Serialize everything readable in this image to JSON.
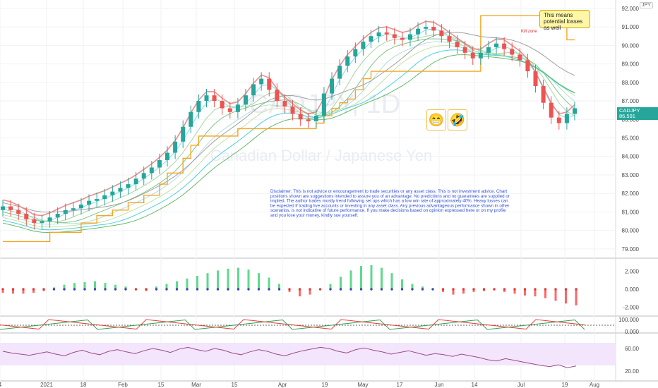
{
  "chart_data": {
    "type": "line",
    "symbol": "CADJPY, 1D",
    "subtitle": "Canadian Dollar / Japanese Yen",
    "currency_tag": "JPY",
    "last_price_label": "CADJPY",
    "last_price": "86.591",
    "countdown": "23:57:43",
    "price_ticks": [
      "92.000",
      "91.000",
      "90.000",
      "89.000",
      "88.000",
      "87.000",
      "86.000",
      "85.000",
      "84.000",
      "83.000",
      "82.000",
      "81.000",
      "80.000",
      "79.000"
    ],
    "ylim": [
      78.5,
      92.3
    ],
    "x_ticks": [
      "4",
      "2021",
      "18",
      "Feb",
      "15",
      "Mar",
      "15",
      "Apr",
      "19",
      "May",
      "17",
      "Jun",
      "14",
      "Jul",
      "19",
      "Aug"
    ],
    "price_close": [
      81.3,
      81.1,
      80.9,
      80.6,
      80.4,
      80.5,
      80.7,
      80.9,
      81.1,
      81.2,
      81.4,
      81.6,
      81.7,
      81.9,
      82.1,
      82.3,
      82.5,
      82.8,
      83.1,
      83.4,
      83.8,
      84.2,
      84.8,
      85.6,
      86.4,
      87.0,
      87.3,
      87.0,
      86.6,
      86.4,
      86.8,
      87.3,
      87.9,
      88.2,
      87.6,
      87.0,
      86.7,
      86.3,
      86.0,
      85.9,
      86.2,
      87.4,
      88.2,
      88.9,
      89.4,
      89.8,
      90.2,
      90.5,
      90.7,
      90.6,
      90.4,
      90.3,
      90.6,
      90.9,
      91.0,
      90.8,
      90.5,
      90.2,
      89.9,
      89.6,
      89.3,
      89.6,
      89.9,
      90.1,
      89.8,
      89.5,
      89.2,
      88.6,
      87.8,
      86.9,
      86.1,
      85.8,
      86.3,
      86.6
    ],
    "stop_line": [
      79.4,
      79.4,
      79.4,
      79.4,
      79.4,
      79.4,
      79.9,
      79.9,
      79.9,
      79.9,
      80.4,
      80.4,
      80.8,
      80.8,
      81.1,
      81.1,
      81.5,
      81.5,
      81.9,
      81.9,
      82.5,
      83.1,
      83.1,
      83.9,
      84.6,
      85.1,
      85.1,
      85.1,
      85.1,
      85.1,
      85.5,
      85.5,
      85.5,
      85.5,
      85.5,
      85.5,
      85.5,
      85.5,
      85.5,
      85.5,
      85.8,
      86.2,
      86.6,
      86.9,
      87.1,
      87.6,
      88.2,
      88.6,
      88.6,
      88.6,
      88.6,
      88.6,
      88.6,
      88.6,
      88.6,
      88.6,
      88.6,
      88.6,
      88.6,
      88.6,
      88.6,
      91.6,
      91.6,
      91.6,
      91.6,
      91.6,
      91.6,
      91.6,
      91.6,
      91.6,
      91.6,
      91.6,
      90.3,
      90.3
    ],
    "macd_ticks": [
      "2.000",
      "0.000",
      "-2.000"
    ],
    "macd_hist": [
      -0.4,
      -0.5,
      -0.5,
      -0.4,
      -0.2,
      0.2,
      0.5,
      0.7,
      0.8,
      0.9,
      0.7,
      0.5,
      0.3,
      -0.1,
      -0.2,
      0.3,
      0.6,
      0.9,
      1.2,
      1.5,
      1.8,
      2.1,
      2.3,
      2.4,
      2.2,
      1.8,
      1.3,
      0.6,
      -0.3,
      -0.8,
      -0.6,
      -0.1,
      0.6,
      1.4,
      2.1,
      2.6,
      2.7,
      2.4,
      1.8,
      1.1,
      0.6,
      0.3,
      0.1,
      -0.3,
      -0.6,
      -0.5,
      -0.3,
      -0.2,
      -0.1,
      -0.3,
      -0.5,
      -0.7,
      -0.8,
      -1.0,
      -1.3,
      -1.6,
      -1.8
    ],
    "stoch_ticks": [
      "100.000",
      "0.000"
    ],
    "rsi_ticks": [
      "60.00",
      "20.00"
    ],
    "rsi_values": [
      55,
      52,
      50,
      48,
      51,
      54,
      50,
      47,
      53,
      57,
      52,
      49,
      55,
      58,
      54,
      51,
      56,
      60,
      57,
      53,
      59,
      62,
      58,
      55,
      60,
      57,
      52,
      49,
      54,
      58,
      55,
      50,
      47,
      52,
      56,
      59,
      62,
      60,
      55,
      52,
      58,
      61,
      57,
      54,
      50,
      53,
      56,
      52,
      48,
      51,
      49,
      46,
      50,
      47,
      44,
      40,
      38,
      42,
      39,
      36,
      33,
      30,
      28,
      31,
      26,
      29
    ]
  },
  "annotations": {
    "callout_text": "This means potential losses as well",
    "kill_zone": "Kill zone",
    "emoji_grin": "😁",
    "emoji_rofl": "🤣",
    "disclaimer": [
      "Disclaimer: This is not advice or encouragement to trade securities or any asset class. This is not investment advice. Chart",
      "positions shown are suggestions intended to assure you of an advantage. No predictions and no guarantees are supplied or",
      "implied.  The author trades mostly trend following set ups which has a low win rate of approximately 40%. Heavy losses can",
      "be expected if trading live accounts or investing in any asset class. Any previous advantageous performance shown in other",
      "scenarios, is not indicative of future performance.  If you make decisions based on opinion expressed here or on my profile",
      "and you lose your money, kindly sue yourself."
    ]
  },
  "colors": {
    "up": "#26a69a",
    "down": "#ef5350",
    "stop": "#f5a623",
    "ribbon_top": "#e57373",
    "rsi": "#9c4a8a",
    "rsi_band": "#f3e5fb"
  }
}
